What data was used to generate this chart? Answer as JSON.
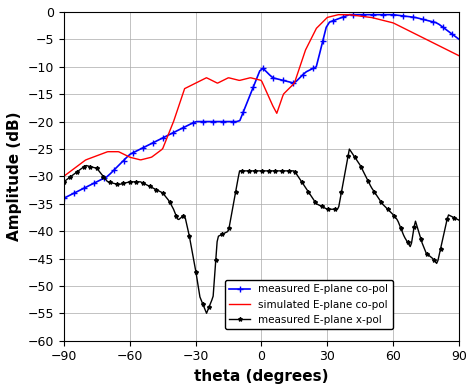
{
  "title": "",
  "xlabel": "theta (degrees)",
  "ylabel": "Amplitude (dB)",
  "xlim": [
    -90,
    90
  ],
  "ylim": [
    -60,
    0
  ],
  "xticks": [
    -90,
    -60,
    -30,
    0,
    30,
    60,
    90
  ],
  "yticks": [
    0,
    -5,
    -10,
    -15,
    -20,
    -25,
    -30,
    -35,
    -40,
    -45,
    -50,
    -55,
    -60
  ],
  "legend": [
    {
      "label": "measured E-plane co-pol",
      "color": "blue",
      "marker": "+"
    },
    {
      "label": "simulated E-plane co-pol",
      "color": "red",
      "marker": ""
    },
    {
      "label": "measured E-plane x-pol",
      "color": "black",
      "marker": "*"
    }
  ],
  "background_color": "#ffffff",
  "grid_color": "#aaaaaa"
}
